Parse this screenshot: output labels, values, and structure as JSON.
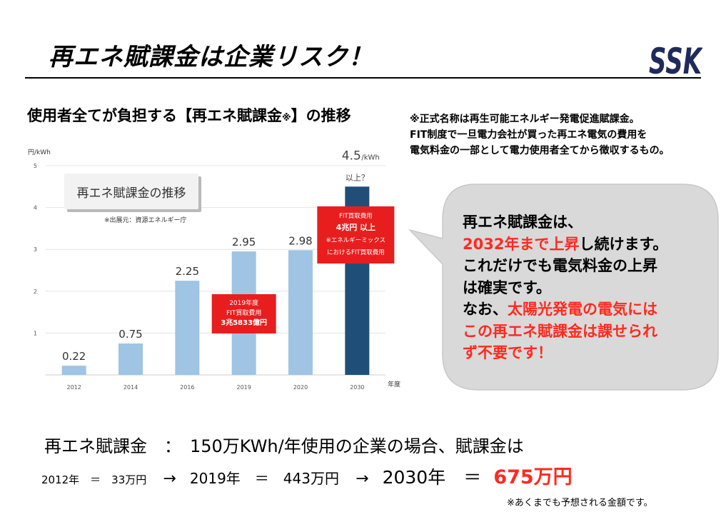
{
  "slide": {
    "title": "再エネ賦課金は企業リスク！",
    "logo_text": "SSK"
  },
  "chart_heading": {
    "main": "使用者全てが負担する【再エネ賦課金",
    "mark": "※",
    "end": "】の推移"
  },
  "definition_note": [
    "※正式名称は再生可能エネルギー発電促進賦課金。",
    "FIT制度で一旦電力会社が買った再エネ電気の費用を",
    "電気料金の一部として電力使用者全てから徴収するもの。"
  ],
  "chart_data": {
    "type": "bar",
    "ylabel": "円/kWh",
    "xlabel": "年度",
    "ylim": [
      0,
      5
    ],
    "yticks": [
      1,
      2,
      3,
      4,
      5
    ],
    "categories": [
      "2012",
      "2014",
      "2016",
      "2019",
      "2020",
      "2030"
    ],
    "values": [
      0.22,
      0.75,
      2.25,
      2.95,
      2.98,
      4.5
    ],
    "data_labels": [
      "0.22",
      "0.75",
      "2.25",
      "2.95",
      "2.98",
      "4.5"
    ],
    "last_label_unit": "/kWh",
    "last_label_note": "以上？",
    "bar_colors": [
      "#9fc4e4",
      "#9fc4e4",
      "#9fc4e4",
      "#9fc4e4",
      "#9fc4e4",
      "#1f4e79"
    ],
    "inset_title": "再エネ賦課金の推移",
    "source": "※出展元：資源エネルギー庁",
    "annotations": [
      {
        "bar": "2019",
        "lines": [
          "2019年度",
          "FIT買取費用",
          "3兆5833億円"
        ]
      },
      {
        "bar": "2030",
        "lines": [
          "FIT買取費用",
          "4兆円 以上",
          "※エネルギーミックス",
          "におけるFIT買取費用"
        ]
      }
    ],
    "grid": true,
    "annotation_color": "#e81e1e"
  },
  "callout": {
    "lines": [
      [
        {
          "t": "再エネ賦課金は、",
          "red": false
        }
      ],
      [
        {
          "t": "2032年まで上昇",
          "red": true
        },
        {
          "t": "し続けます。",
          "red": false
        }
      ],
      [
        {
          "t": "これだけでも電気料金の上昇",
          "red": false
        }
      ],
      [
        {
          "t": "は確実です。",
          "red": false
        }
      ],
      [
        {
          "t": "なお、",
          "red": false
        },
        {
          "t": "太陽光発電の電気には",
          "red": true
        }
      ],
      [
        {
          "t": "この再エネ賦課金は課せられ",
          "red": true
        }
      ],
      [
        {
          "t": "ず不要です！",
          "red": true
        }
      ]
    ]
  },
  "bottom": {
    "line1": "再エネ賦課金　：　150万KWh/年使用の企業の場合、賦課金は",
    "y2012": "2012年　＝　33万円",
    "arrow": "→",
    "y2019": "2019年　＝　443万円",
    "y2030": "2030年　＝",
    "y2030_value": "675万円",
    "footnote": "※あくまでも予想される金額です。"
  },
  "colors": {
    "accent_red": "#ff2a1f",
    "bar_light": "#9fc4e4",
    "bar_dark": "#1f4e79",
    "callout_bg": "#d9d9d9",
    "logo": "#1f2a5c"
  }
}
